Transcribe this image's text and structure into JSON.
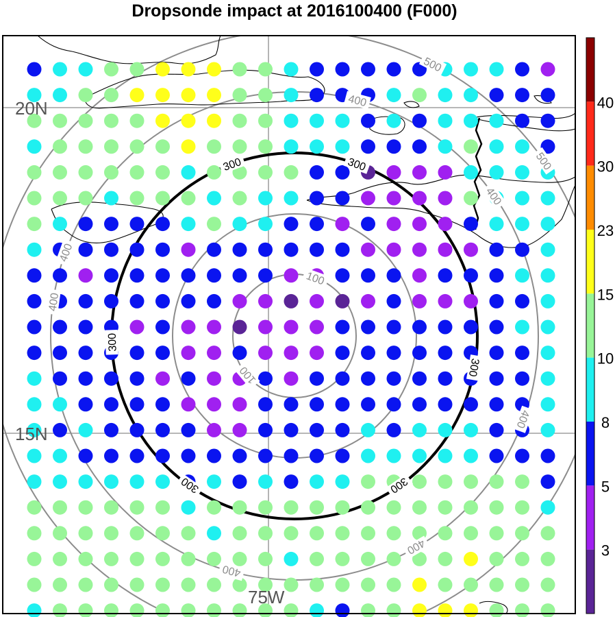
{
  "title": "Dropsonde impact at 2016100400 (F000)",
  "map": {
    "lat_labels": [
      "20N",
      "15N"
    ],
    "lon_labels": [
      "75W"
    ],
    "contours": [
      {
        "label": "100",
        "color": "#8c8c8c"
      },
      {
        "label": "200",
        "color": "#8c8c8c"
      },
      {
        "label": "300",
        "color": "#000000"
      },
      {
        "label": "400",
        "color": "#8c8c8c"
      },
      {
        "label": "500",
        "color": "#8c8c8c"
      }
    ],
    "visible_contour_labels": [
      "100",
      "300",
      "400"
    ]
  },
  "colorbar": {
    "tick_labels": [
      "40",
      "30",
      "23",
      "15",
      "10",
      "8",
      "5",
      "3"
    ],
    "colors": [
      "#8b0000",
      "#ff2a1a",
      "#ff8c00",
      "#ffff1a",
      "#98f598",
      "#1ff0f0",
      "#0a14f0",
      "#a020f0",
      "#5a2496"
    ]
  },
  "grid": {
    "rows": [
      "BCCGGYYYGGCBBBBBCCCBP",
      "CCGGYYYYGGCBBBCGCCBBB",
      "GGGGGYYYGGCCCBCBCCCBB",
      "CGGGGGYGGGCCCBBBCGCCB",
      "GGGGGGCGGGGBBDPPPCCCC",
      "GGGCGGGCGCCBBPPPPGCCC",
      "GCBBBBCGCCBBPBPPPBCCC",
      "CBBBBBPBBBBBBPPPPPBBC",
      "BBPBBBBBBBPPBBBPBBBCC",
      "BBBBBBBBPPDPDPBPPPBBC",
      "BBBBPBPPDPPPBBBBBBBCC",
      "BBBBBBPPBPPPBBBBBBBBC",
      "CBBBBPBPPBPBBBBBBBBBC",
      "CCBBBBPPPBBBBBBBBBBBC",
      "CBCBBBBPPBBBBCBCCCBBC",
      "CCBBBBBBBBBBBCCCCCBBB",
      "CCCCCCBCBCBCCGGGGGGGB",
      "GGGGGGCGGGGGGGGGGGGGC",
      "GGGGGGGCGGGGGGGGGGGGG",
      "GGGGGGGGGGCGGGGGGYGGG",
      "GGGGGGGGGGGGGGGYGGGGG",
      "CGGGGGGGGGGCBGGYYYGGG"
    ],
    "legend": {
      "D": "#5a2496",
      "P": "#a020f0",
      "B": "#0a14f0",
      "C": "#1ff0f0",
      "G": "#98f598",
      "Y": "#ffff1a"
    }
  }
}
